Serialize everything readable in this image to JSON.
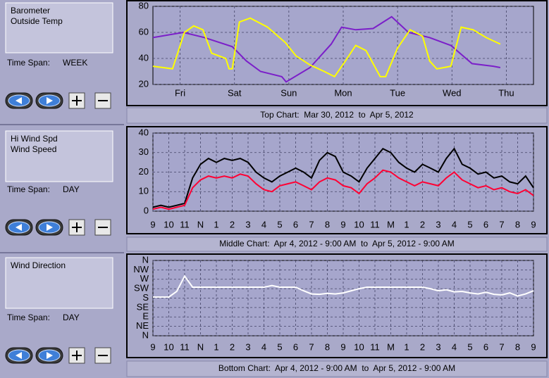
{
  "panels": [
    {
      "time_span_label": "Time Span:",
      "time_span": "WEEK",
      "caption": "Top Chart:  Mar 30, 2012  to  Apr 5, 2012",
      "chart": {
        "type": "line",
        "xlim": [
          0,
          7
        ],
        "ylim": [
          20,
          80
        ],
        "yticks": [
          20,
          40,
          60,
          80
        ],
        "grid": true,
        "xticks": [
          {
            "value": 0.5,
            "label": "Fri"
          },
          {
            "value": 1.5,
            "label": "Sat"
          },
          {
            "value": 2.5,
            "label": "Sun"
          },
          {
            "value": 3.5,
            "label": "Mon"
          },
          {
            "value": 4.5,
            "label": "Tue"
          },
          {
            "value": 5.5,
            "label": "Wed"
          },
          {
            "value": 6.5,
            "label": "Thu"
          }
        ],
        "series": [
          {
            "name": "Barometer",
            "color": "#7b1fc9",
            "x": [
              0,
              0.56,
              0.95,
              1.46,
              1.72,
              1.98,
              2.37,
              2.45,
              2.89,
              3.28,
              3.47,
              3.73,
              4.05,
              4.39,
              4.7,
              5.09,
              5.48,
              5.87,
              6.26,
              6.39
            ],
            "values": [
              56,
              60,
              56,
              49,
              38,
              30,
              26,
              22,
              33,
              51,
              64,
              62,
              63,
              72,
              60,
              56,
              50,
              36,
              34,
              33
            ]
          },
          {
            "name": "Outside Temp",
            "color": "#ffff00",
            "x": [
              0,
              0.36,
              0.58,
              0.75,
              0.92,
              1.08,
              1.34,
              1.4,
              1.46,
              1.59,
              1.79,
              2.11,
              2.44,
              2.63,
              2.89,
              3.15,
              3.34,
              3.54,
              3.73,
              3.92,
              4.18,
              4.28,
              4.5,
              4.73,
              4.96,
              5.09,
              5.22,
              5.35,
              5.48,
              5.67,
              5.89,
              6.13,
              6.39
            ],
            "values": [
              34,
              32,
              60,
              65,
              62,
              44,
              40,
              32,
              32,
              68,
              71,
              64,
              52,
              42,
              35,
              30,
              26,
              38,
              50,
              46,
              26,
              26,
              48,
              62,
              57,
              38,
              32,
              33,
              34,
              64,
              62,
              56,
              51
            ]
          }
        ]
      }
    },
    {
      "time_span_label": "Time Span:",
      "time_span": "DAY",
      "caption": "Middle Chart:  Apr 4, 2012 - 9:00 AM  to  Apr 5, 2012 - 9:00 AM",
      "chart": {
        "type": "line",
        "xlim": [
          0,
          24
        ],
        "ylim": [
          0,
          40
        ],
        "yticks": [
          0,
          10,
          20,
          30,
          40
        ],
        "grid": true,
        "xticks": [
          {
            "value": 0,
            "label": "9"
          },
          {
            "value": 1,
            "label": "10"
          },
          {
            "value": 2,
            "label": "11"
          },
          {
            "value": 3,
            "label": "N"
          },
          {
            "value": 4,
            "label": "1"
          },
          {
            "value": 5,
            "label": "2"
          },
          {
            "value": 6,
            "label": "3"
          },
          {
            "value": 7,
            "label": "4"
          },
          {
            "value": 8,
            "label": "5"
          },
          {
            "value": 9,
            "label": "6"
          },
          {
            "value": 10,
            "label": "7"
          },
          {
            "value": 11,
            "label": "8"
          },
          {
            "value": 12,
            "label": "9"
          },
          {
            "value": 13,
            "label": "10"
          },
          {
            "value": 14,
            "label": "11"
          },
          {
            "value": 15,
            "label": "M"
          },
          {
            "value": 16,
            "label": "1"
          },
          {
            "value": 17,
            "label": "2"
          },
          {
            "value": 18,
            "label": "3"
          },
          {
            "value": 19,
            "label": "4"
          },
          {
            "value": 20,
            "label": "5"
          },
          {
            "value": 21,
            "label": "6"
          },
          {
            "value": 22,
            "label": "7"
          },
          {
            "value": 23,
            "label": "8"
          },
          {
            "value": 24,
            "label": "9"
          }
        ],
        "x": [
          0,
          0.5,
          1,
          1.5,
          2,
          2.5,
          3,
          3.5,
          4,
          4.5,
          5,
          5.5,
          6,
          6.5,
          7,
          7.5,
          8,
          8.5,
          9,
          9.5,
          10,
          10.5,
          11,
          11.5,
          12,
          12.5,
          13,
          13.5,
          14,
          14.5,
          15,
          15.5,
          16,
          16.5,
          17,
          17.5,
          18,
          18.5,
          19,
          19.5,
          20,
          20.5,
          21,
          21.5,
          22,
          22.5,
          23,
          23.5,
          24
        ],
        "series": [
          {
            "name": "Hi Wind Spd",
            "color": "#000000",
            "values": [
              2,
              3,
              2,
              3,
              4,
              17,
              24,
              27,
              25,
              27,
              26,
              27,
              25,
              20,
              17,
              15,
              18,
              20,
              22,
              20,
              17,
              26,
              30,
              28,
              20,
              18,
              15,
              22,
              27,
              32,
              30,
              25,
              22,
              20,
              24,
              22,
              20,
              27,
              32,
              24,
              22,
              19,
              20,
              17,
              18,
              15,
              14,
              18,
              12
            ]
          },
          {
            "name": "Wind Speed",
            "color": "#ff0033",
            "values": [
              1,
              2,
              1,
              2,
              3,
              12,
              16,
              18,
              17,
              18,
              17,
              19,
              18,
              14,
              11,
              10,
              13,
              14,
              15,
              13,
              11,
              15,
              17,
              16,
              13,
              12,
              9,
              14,
              17,
              21,
              20,
              17,
              15,
              13,
              15,
              14,
              13,
              17,
              20,
              16,
              14,
              12,
              13,
              11,
              12,
              10,
              9,
              11,
              8
            ]
          }
        ]
      }
    },
    {
      "time_span_label": "Time Span:",
      "time_span": "DAY",
      "caption": "Bottom Chart:  Apr 4, 2012 - 9:00 AM  to  Apr 5, 2012 - 9:00 AM",
      "chart": {
        "type": "line",
        "xlim": [
          0,
          24
        ],
        "ylim": [
          0,
          360
        ],
        "grid": true,
        "yticks": [
          {
            "value": 0,
            "label": "N"
          },
          {
            "value": 45,
            "label": "NE"
          },
          {
            "value": 90,
            "label": "E"
          },
          {
            "value": 135,
            "label": "SE"
          },
          {
            "value": 180,
            "label": "S"
          },
          {
            "value": 225,
            "label": "SW"
          },
          {
            "value": 270,
            "label": "W"
          },
          {
            "value": 315,
            "label": "NW"
          },
          {
            "value": 360,
            "label": "N"
          }
        ],
        "xticks": [
          {
            "value": 0,
            "label": "9"
          },
          {
            "value": 1,
            "label": "10"
          },
          {
            "value": 2,
            "label": "11"
          },
          {
            "value": 3,
            "label": "N"
          },
          {
            "value": 4,
            "label": "1"
          },
          {
            "value": 5,
            "label": "2"
          },
          {
            "value": 6,
            "label": "3"
          },
          {
            "value": 7,
            "label": "4"
          },
          {
            "value": 8,
            "label": "5"
          },
          {
            "value": 9,
            "label": "6"
          },
          {
            "value": 10,
            "label": "7"
          },
          {
            "value": 11,
            "label": "8"
          },
          {
            "value": 12,
            "label": "9"
          },
          {
            "value": 13,
            "label": "10"
          },
          {
            "value": 14,
            "label": "11"
          },
          {
            "value": 15,
            "label": "M"
          },
          {
            "value": 16,
            "label": "1"
          },
          {
            "value": 17,
            "label": "2"
          },
          {
            "value": 18,
            "label": "3"
          },
          {
            "value": 19,
            "label": "4"
          },
          {
            "value": 20,
            "label": "5"
          },
          {
            "value": 21,
            "label": "6"
          },
          {
            "value": 22,
            "label": "7"
          },
          {
            "value": 23,
            "label": "8"
          },
          {
            "value": 24,
            "label": "9"
          }
        ],
        "x": [
          0,
          0.5,
          1,
          1.5,
          2,
          2.5,
          3,
          3.5,
          4,
          4.5,
          5,
          5.5,
          6,
          6.5,
          7,
          7.5,
          8,
          8.5,
          9,
          9.5,
          10,
          10.5,
          11,
          11.5,
          12,
          12.5,
          13,
          13.5,
          14,
          14.5,
          15,
          15.5,
          16,
          16.5,
          17,
          17.5,
          18,
          18.5,
          19,
          19.5,
          20,
          20.5,
          21,
          21.5,
          22,
          22.5,
          23,
          23.5,
          24
        ],
        "series": [
          {
            "name": "Wind Direction",
            "color": "#ffffff",
            "values": [
              185,
              185,
              185,
              212,
              285,
              232,
              232,
              232,
              232,
              232,
              232,
              232,
              232,
              232,
              232,
              240,
              232,
              232,
              232,
              215,
              200,
              198,
              203,
              200,
              205,
              215,
              225,
              232,
              232,
              232,
              232,
              232,
              232,
              232,
              232,
              225,
              215,
              220,
              210,
              212,
              205,
              200,
              208,
              198,
              195,
              205,
              190,
              200,
              215
            ]
          }
        ]
      }
    }
  ]
}
